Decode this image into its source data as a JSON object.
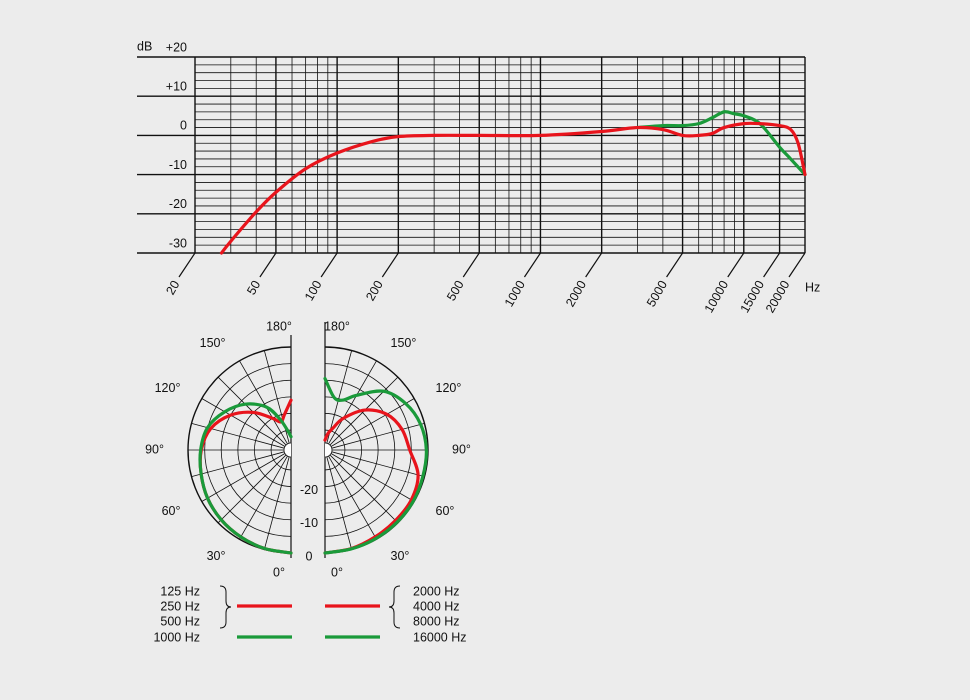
{
  "chart_data": [
    {
      "type": "line",
      "xscale": "log",
      "ylabel": "dB",
      "xlabel": "Hz",
      "xlim": [
        20,
        20000
      ],
      "ylim": [
        -30,
        20
      ],
      "xticks": [
        20,
        50,
        100,
        200,
        500,
        1000,
        2000,
        5000,
        10000,
        15000,
        20000
      ],
      "minor_xticks": [
        30,
        40,
        60,
        70,
        80,
        90,
        300,
        400,
        600,
        700,
        800,
        900,
        3000,
        4000,
        6000,
        7000,
        8000,
        9000
      ],
      "yticks": [
        {
          "value": 20,
          "label": "+20"
        },
        {
          "value": 10,
          "label": "+10"
        },
        0,
        -10,
        -20,
        -30
      ],
      "minor_yticks": [
        18,
        16,
        14,
        12,
        8,
        6,
        4,
        2,
        -2,
        -4,
        -6,
        -8,
        -12,
        -14,
        -16,
        -18,
        -22,
        -24,
        -26,
        -28
      ],
      "series": [
        {
          "color": "#1a9a3a",
          "x": [
            3000,
            4000,
            5000,
            6000,
            7000,
            8000,
            9000,
            10000,
            12000,
            15000,
            17000,
            20000
          ],
          "values": [
            2,
            2.5,
            2.5,
            3,
            4.5,
            6,
            5.5,
            5,
            3,
            -3,
            -6,
            -10
          ]
        },
        {
          "color": "#e8141c",
          "x": [
            27,
            30,
            40,
            50,
            70,
            100,
            150,
            200,
            300,
            500,
            1000,
            2000,
            3000,
            4000,
            5000,
            6000,
            7000,
            8000,
            10000,
            12000,
            15000,
            17000,
            18500,
            20000
          ],
          "values": [
            -30,
            -27,
            -19.5,
            -14.5,
            -8.5,
            -4.5,
            -1.5,
            -0.3,
            0,
            0,
            0,
            1,
            2,
            1.5,
            0,
            0,
            0.5,
            2,
            3,
            3,
            2.5,
            1.5,
            -2,
            -10
          ]
        }
      ]
    },
    {
      "type": "polar",
      "rlim": [
        -31,
        0
      ],
      "rticks": [
        0,
        -10,
        -20
      ],
      "minor_rticks": [
        -5,
        -15,
        -25
      ],
      "angle_ticks": [
        {
          "value": 0,
          "label": "0°"
        },
        {
          "value": 30,
          "label": "30°"
        },
        {
          "value": 60,
          "label": "60°"
        },
        {
          "value": 90,
          "label": "90°"
        },
        {
          "value": 120,
          "label": "120°"
        },
        {
          "value": 150,
          "label": "150°"
        },
        {
          "value": 180,
          "label": "180°"
        }
      ],
      "minor_angle_ticks": [
        15,
        45,
        75,
        105,
        135,
        165
      ],
      "series": [
        {
          "side": "left",
          "name": [
            "125 Hz",
            "250 Hz",
            "500 Hz"
          ],
          "color": "#e8141c",
          "angles": [
            0,
            15,
            30,
            45,
            60,
            75,
            90,
            105,
            120,
            135,
            150,
            160,
            170,
            180
          ],
          "values": [
            0,
            -0.3,
            -0.8,
            -1.3,
            -2,
            -3,
            -4,
            -6,
            -10,
            -15,
            -20,
            -22,
            -20,
            -16
          ]
        },
        {
          "side": "left",
          "name": "1000 Hz",
          "color": "#1a9a3a",
          "angles": [
            0,
            15,
            30,
            45,
            60,
            75,
            90,
            105,
            120,
            135,
            150,
            160,
            170,
            180
          ],
          "values": [
            0,
            -0.3,
            -0.8,
            -1.3,
            -2,
            -3,
            -3.8,
            -5,
            -8,
            -11.5,
            -16,
            -21,
            -25,
            -27
          ]
        },
        {
          "side": "right",
          "name": [
            "2000 Hz",
            "4000 Hz",
            "8000 Hz"
          ],
          "color": "#e8141c",
          "angles": [
            0,
            15,
            30,
            45,
            60,
            75,
            90,
            105,
            120,
            135,
            150,
            160,
            170,
            180
          ],
          "values": [
            0,
            -0.3,
            -0.8,
            -1,
            -1,
            -2,
            -5.5,
            -7,
            -9.5,
            -14,
            -20,
            -24,
            -26,
            -28
          ]
        },
        {
          "side": "right",
          "name": "16000 Hz",
          "color": "#1a9a3a",
          "angles": [
            0,
            15,
            30,
            45,
            60,
            75,
            90,
            105,
            120,
            135,
            150,
            160,
            170,
            180
          ],
          "values": [
            0,
            -0.2,
            -0.3,
            -0.3,
            -0.3,
            -0.5,
            -0.5,
            -1.2,
            -3,
            -6,
            -12,
            -15,
            -15,
            -9.5
          ]
        }
      ]
    }
  ]
}
